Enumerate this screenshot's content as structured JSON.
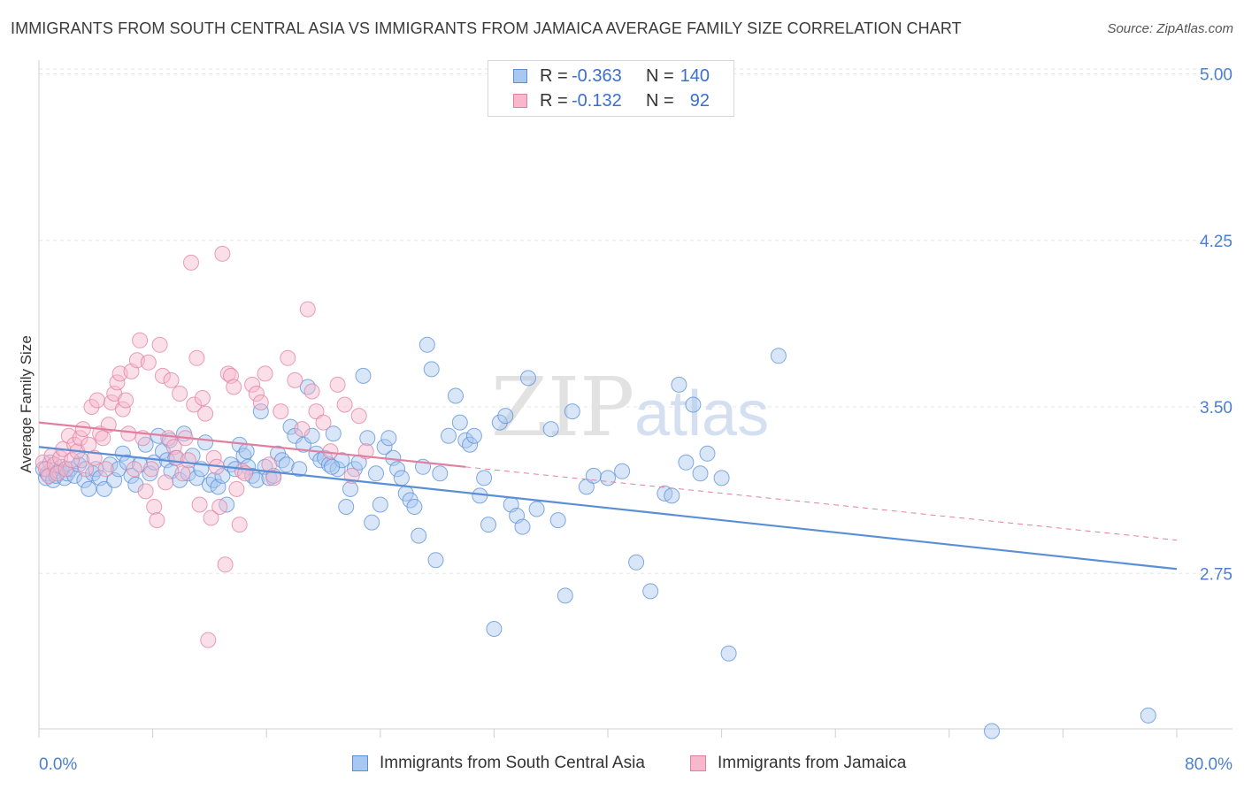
{
  "title": "IMMIGRANTS FROM SOUTH CENTRAL ASIA VS IMMIGRANTS FROM JAMAICA AVERAGE FAMILY SIZE CORRELATION CHART",
  "source": "Source: ZipAtlas.com",
  "watermark": {
    "zip": "ZIP",
    "atlas": "atlas"
  },
  "legend": {
    "rows": [
      {
        "r_label": "R =",
        "r_value": "-0.363",
        "n_label": "N =",
        "n_value": "140",
        "color": "#a8c8f0",
        "border": "#5a8fd8"
      },
      {
        "r_label": "R =",
        "r_value": "-0.132",
        "n_label": "N =",
        "n_value": "92",
        "color": "#f7b8cc",
        "border": "#e27fa0"
      }
    ]
  },
  "bottom_legend": [
    {
      "label": "Immigrants from South Central Asia",
      "color": "#a8c8f0",
      "border": "#5a8fd8"
    },
    {
      "label": "Immigrants from Jamaica",
      "color": "#f7b8cc",
      "border": "#e27fa0"
    }
  ],
  "chart_data": {
    "type": "scatter",
    "title": "IMMIGRANTS FROM SOUTH CENTRAL ASIA VS IMMIGRANTS FROM JAMAICA AVERAGE FAMILY SIZE CORRELATION CHART",
    "xlabel": "",
    "ylabel": "Average Family Size",
    "xlim": [
      0,
      80
    ],
    "ylim": [
      2.05,
      5.05
    ],
    "x_tick_labels": [
      "0.0%",
      "80.0%"
    ],
    "y_ticks": [
      2.75,
      3.5,
      4.25,
      5.0
    ],
    "y_tick_labels": [
      "2.75",
      "3.50",
      "4.25",
      "5.00"
    ],
    "grid": "horizontal dashed",
    "legend_position": "top-center",
    "series": [
      {
        "name": "Immigrants from South Central Asia",
        "color": "#5a8fd8",
        "fill": "#a8c8f0",
        "trend": {
          "x": [
            0,
            80
          ],
          "y": [
            3.32,
            2.77
          ],
          "style": "solid"
        },
        "points": [
          [
            0.3,
            3.22
          ],
          [
            0.5,
            3.18
          ],
          [
            0.6,
            3.2
          ],
          [
            0.8,
            3.25
          ],
          [
            1.0,
            3.17
          ],
          [
            1.2,
            3.19
          ],
          [
            1.4,
            3.21
          ],
          [
            1.6,
            3.23
          ],
          [
            1.8,
            3.18
          ],
          [
            2.0,
            3.2
          ],
          [
            2.2,
            3.22
          ],
          [
            2.5,
            3.19
          ],
          [
            2.8,
            3.24
          ],
          [
            3.0,
            3.26
          ],
          [
            3.2,
            3.17
          ],
          [
            3.5,
            3.13
          ],
          [
            3.8,
            3.2
          ],
          [
            4.0,
            3.22
          ],
          [
            4.3,
            3.18
          ],
          [
            4.6,
            3.13
          ],
          [
            5.0,
            3.24
          ],
          [
            5.3,
            3.17
          ],
          [
            5.6,
            3.22
          ],
          [
            5.9,
            3.29
          ],
          [
            6.2,
            3.25
          ],
          [
            6.5,
            3.19
          ],
          [
            6.8,
            3.15
          ],
          [
            7.1,
            3.24
          ],
          [
            7.5,
            3.33
          ],
          [
            7.8,
            3.2
          ],
          [
            8.1,
            3.25
          ],
          [
            8.4,
            3.37
          ],
          [
            8.7,
            3.3
          ],
          [
            9.0,
            3.26
          ],
          [
            9.3,
            3.21
          ],
          [
            9.6,
            3.27
          ],
          [
            9.9,
            3.17
          ],
          [
            10.2,
            3.38
          ],
          [
            10.5,
            3.2
          ],
          [
            10.8,
            3.28
          ],
          [
            11.1,
            3.18
          ],
          [
            11.4,
            3.22
          ],
          [
            11.7,
            3.34
          ],
          [
            12.0,
            3.15
          ],
          [
            12.3,
            3.17
          ],
          [
            12.6,
            3.14
          ],
          [
            12.9,
            3.19
          ],
          [
            13.2,
            3.06
          ],
          [
            13.5,
            3.24
          ],
          [
            13.8,
            3.22
          ],
          [
            14.1,
            3.33
          ],
          [
            14.4,
            3.28
          ],
          [
            14.7,
            3.23
          ],
          [
            15.0,
            3.19
          ],
          [
            15.3,
            3.17
          ],
          [
            15.6,
            3.48
          ],
          [
            15.9,
            3.23
          ],
          [
            16.2,
            3.18
          ],
          [
            16.5,
            3.19
          ],
          [
            16.8,
            3.29
          ],
          [
            17.1,
            3.26
          ],
          [
            17.4,
            3.24
          ],
          [
            17.7,
            3.41
          ],
          [
            18.0,
            3.37
          ],
          [
            18.3,
            3.22
          ],
          [
            18.6,
            3.33
          ],
          [
            18.9,
            3.59
          ],
          [
            19.2,
            3.37
          ],
          [
            19.5,
            3.29
          ],
          [
            19.8,
            3.26
          ],
          [
            20.1,
            3.27
          ],
          [
            20.4,
            3.24
          ],
          [
            20.7,
            3.38
          ],
          [
            21.0,
            3.22
          ],
          [
            21.3,
            3.26
          ],
          [
            21.6,
            3.05
          ],
          [
            21.9,
            3.13
          ],
          [
            22.2,
            3.22
          ],
          [
            22.5,
            3.25
          ],
          [
            22.8,
            3.64
          ],
          [
            23.1,
            3.36
          ],
          [
            23.4,
            2.98
          ],
          [
            23.7,
            3.2
          ],
          [
            24.0,
            3.06
          ],
          [
            24.3,
            3.32
          ],
          [
            24.6,
            3.36
          ],
          [
            24.9,
            3.27
          ],
          [
            25.2,
            3.22
          ],
          [
            25.5,
            3.18
          ],
          [
            25.8,
            3.11
          ],
          [
            26.1,
            3.08
          ],
          [
            26.4,
            3.05
          ],
          [
            26.7,
            2.92
          ],
          [
            27.0,
            3.23
          ],
          [
            27.3,
            3.78
          ],
          [
            27.6,
            3.67
          ],
          [
            27.9,
            2.81
          ],
          [
            28.2,
            3.2
          ],
          [
            28.8,
            3.37
          ],
          [
            29.3,
            3.55
          ],
          [
            29.6,
            3.43
          ],
          [
            30.0,
            3.35
          ],
          [
            30.3,
            3.33
          ],
          [
            30.6,
            3.37
          ],
          [
            31.0,
            3.1
          ],
          [
            31.3,
            3.18
          ],
          [
            31.6,
            2.97
          ],
          [
            32.0,
            2.5
          ],
          [
            32.4,
            3.43
          ],
          [
            32.8,
            3.46
          ],
          [
            33.2,
            3.06
          ],
          [
            33.6,
            3.01
          ],
          [
            34.0,
            2.96
          ],
          [
            34.4,
            3.63
          ],
          [
            35.0,
            3.04
          ],
          [
            36.0,
            3.4
          ],
          [
            36.5,
            2.99
          ],
          [
            37.0,
            2.65
          ],
          [
            37.5,
            3.48
          ],
          [
            38.5,
            3.14
          ],
          [
            39.0,
            3.19
          ],
          [
            40.0,
            3.18
          ],
          [
            41.0,
            3.21
          ],
          [
            42.0,
            2.8
          ],
          [
            43.0,
            2.67
          ],
          [
            44.0,
            3.11
          ],
          [
            44.5,
            3.1
          ],
          [
            45.0,
            3.6
          ],
          [
            45.5,
            3.25
          ],
          [
            46.0,
            3.51
          ],
          [
            46.5,
            3.2
          ],
          [
            47.0,
            3.29
          ],
          [
            48.0,
            3.18
          ],
          [
            48.5,
            2.39
          ],
          [
            52.0,
            3.73
          ],
          [
            67.0,
            2.04
          ],
          [
            78.0,
            2.11
          ],
          [
            20.6,
            3.23
          ],
          [
            14.6,
            3.3
          ],
          [
            9.2,
            3.35
          ]
        ]
      },
      {
        "name": "Immigrants from Jamaica",
        "color": "#e27fa0",
        "fill": "#f7b8cc",
        "trend": {
          "x": [
            0,
            30
          ],
          "y": [
            3.43,
            3.23
          ],
          "style": "solid"
        },
        "trend_extension": {
          "x": [
            30,
            80
          ],
          "y": [
            3.23,
            2.9
          ],
          "style": "dashed"
        },
        "points": [
          [
            0.3,
            3.25
          ],
          [
            0.5,
            3.22
          ],
          [
            0.7,
            3.19
          ],
          [
            0.9,
            3.28
          ],
          [
            1.1,
            3.24
          ],
          [
            1.3,
            3.2
          ],
          [
            1.5,
            3.27
          ],
          [
            1.7,
            3.31
          ],
          [
            1.9,
            3.22
          ],
          [
            2.1,
            3.37
          ],
          [
            2.3,
            3.26
          ],
          [
            2.5,
            3.33
          ],
          [
            2.7,
            3.3
          ],
          [
            2.9,
            3.36
          ],
          [
            3.1,
            3.4
          ],
          [
            3.3,
            3.22
          ],
          [
            3.5,
            3.33
          ],
          [
            3.7,
            3.5
          ],
          [
            3.9,
            3.27
          ],
          [
            4.1,
            3.53
          ],
          [
            4.3,
            3.38
          ],
          [
            4.5,
            3.36
          ],
          [
            4.7,
            3.22
          ],
          [
            4.9,
            3.42
          ],
          [
            5.1,
            3.52
          ],
          [
            5.3,
            3.56
          ],
          [
            5.5,
            3.61
          ],
          [
            5.7,
            3.65
          ],
          [
            5.9,
            3.49
          ],
          [
            6.1,
            3.53
          ],
          [
            6.3,
            3.38
          ],
          [
            6.5,
            3.66
          ],
          [
            6.7,
            3.22
          ],
          [
            6.9,
            3.71
          ],
          [
            7.1,
            3.8
          ],
          [
            7.3,
            3.36
          ],
          [
            7.5,
            3.12
          ],
          [
            7.7,
            3.7
          ],
          [
            7.9,
            3.22
          ],
          [
            8.1,
            3.05
          ],
          [
            8.3,
            2.99
          ],
          [
            8.5,
            3.78
          ],
          [
            8.7,
            3.64
          ],
          [
            8.9,
            3.16
          ],
          [
            9.1,
            3.36
          ],
          [
            9.3,
            3.62
          ],
          [
            9.5,
            3.32
          ],
          [
            9.7,
            3.27
          ],
          [
            9.9,
            3.56
          ],
          [
            10.1,
            3.2
          ],
          [
            10.3,
            3.36
          ],
          [
            10.5,
            3.26
          ],
          [
            10.7,
            4.15
          ],
          [
            10.9,
            3.51
          ],
          [
            11.1,
            3.72
          ],
          [
            11.3,
            3.06
          ],
          [
            11.5,
            3.54
          ],
          [
            11.7,
            3.47
          ],
          [
            11.9,
            2.45
          ],
          [
            12.1,
            3.0
          ],
          [
            12.3,
            3.27
          ],
          [
            12.5,
            3.23
          ],
          [
            12.7,
            3.05
          ],
          [
            12.9,
            4.19
          ],
          [
            13.1,
            2.79
          ],
          [
            13.3,
            3.65
          ],
          [
            13.5,
            3.64
          ],
          [
            13.7,
            3.59
          ],
          [
            13.9,
            3.13
          ],
          [
            14.1,
            2.97
          ],
          [
            14.3,
            3.21
          ],
          [
            14.5,
            3.2
          ],
          [
            15.0,
            3.6
          ],
          [
            15.3,
            3.56
          ],
          [
            15.6,
            3.52
          ],
          [
            15.9,
            3.65
          ],
          [
            16.2,
            3.24
          ],
          [
            16.5,
            3.18
          ],
          [
            17.0,
            3.48
          ],
          [
            17.5,
            3.72
          ],
          [
            18.0,
            3.62
          ],
          [
            18.5,
            3.4
          ],
          [
            18.9,
            3.94
          ],
          [
            19.2,
            3.57
          ],
          [
            19.5,
            3.48
          ],
          [
            20.0,
            3.43
          ],
          [
            20.5,
            3.3
          ],
          [
            21.0,
            3.6
          ],
          [
            21.5,
            3.51
          ],
          [
            22.0,
            3.19
          ],
          [
            22.5,
            3.46
          ],
          [
            23.0,
            3.3
          ]
        ]
      }
    ]
  }
}
